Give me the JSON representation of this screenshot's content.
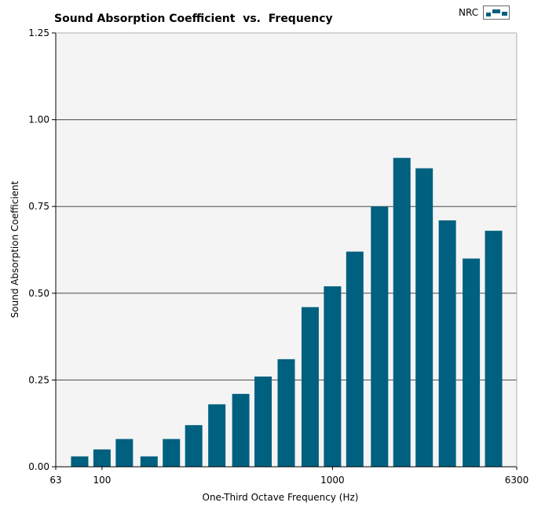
{
  "chart_data": {
    "type": "bar",
    "title": "Sound Absorption Coefficient  vs.  Frequency",
    "xlabel": "One-Third Octave Frequency (Hz)",
    "ylabel": "Sound Absorption Coefficient",
    "ylim": [
      0,
      1.25
    ],
    "yticks": [
      "0.00",
      "0.25",
      "0.50",
      "0.75",
      "1.00",
      "1.25"
    ],
    "xticks": [
      "63",
      "100",
      "1000",
      "6300"
    ],
    "x_scale": "log",
    "xlim": [
      63,
      6300
    ],
    "grid": true,
    "legend_position": "top-right",
    "bar_color": "#00607f",
    "series": [
      {
        "name": "NRC",
        "x": [
          80,
          100,
          125,
          160,
          200,
          250,
          315,
          400,
          500,
          630,
          800,
          1000,
          1250,
          1600,
          2000,
          2500,
          3150,
          4000,
          5000
        ],
        "values": [
          0.03,
          0.05,
          0.08,
          0.03,
          0.08,
          0.12,
          0.18,
          0.21,
          0.26,
          0.31,
          0.46,
          0.52,
          0.62,
          0.75,
          0.89,
          0.86,
          0.71,
          0.6,
          0.68
        ]
      }
    ]
  }
}
